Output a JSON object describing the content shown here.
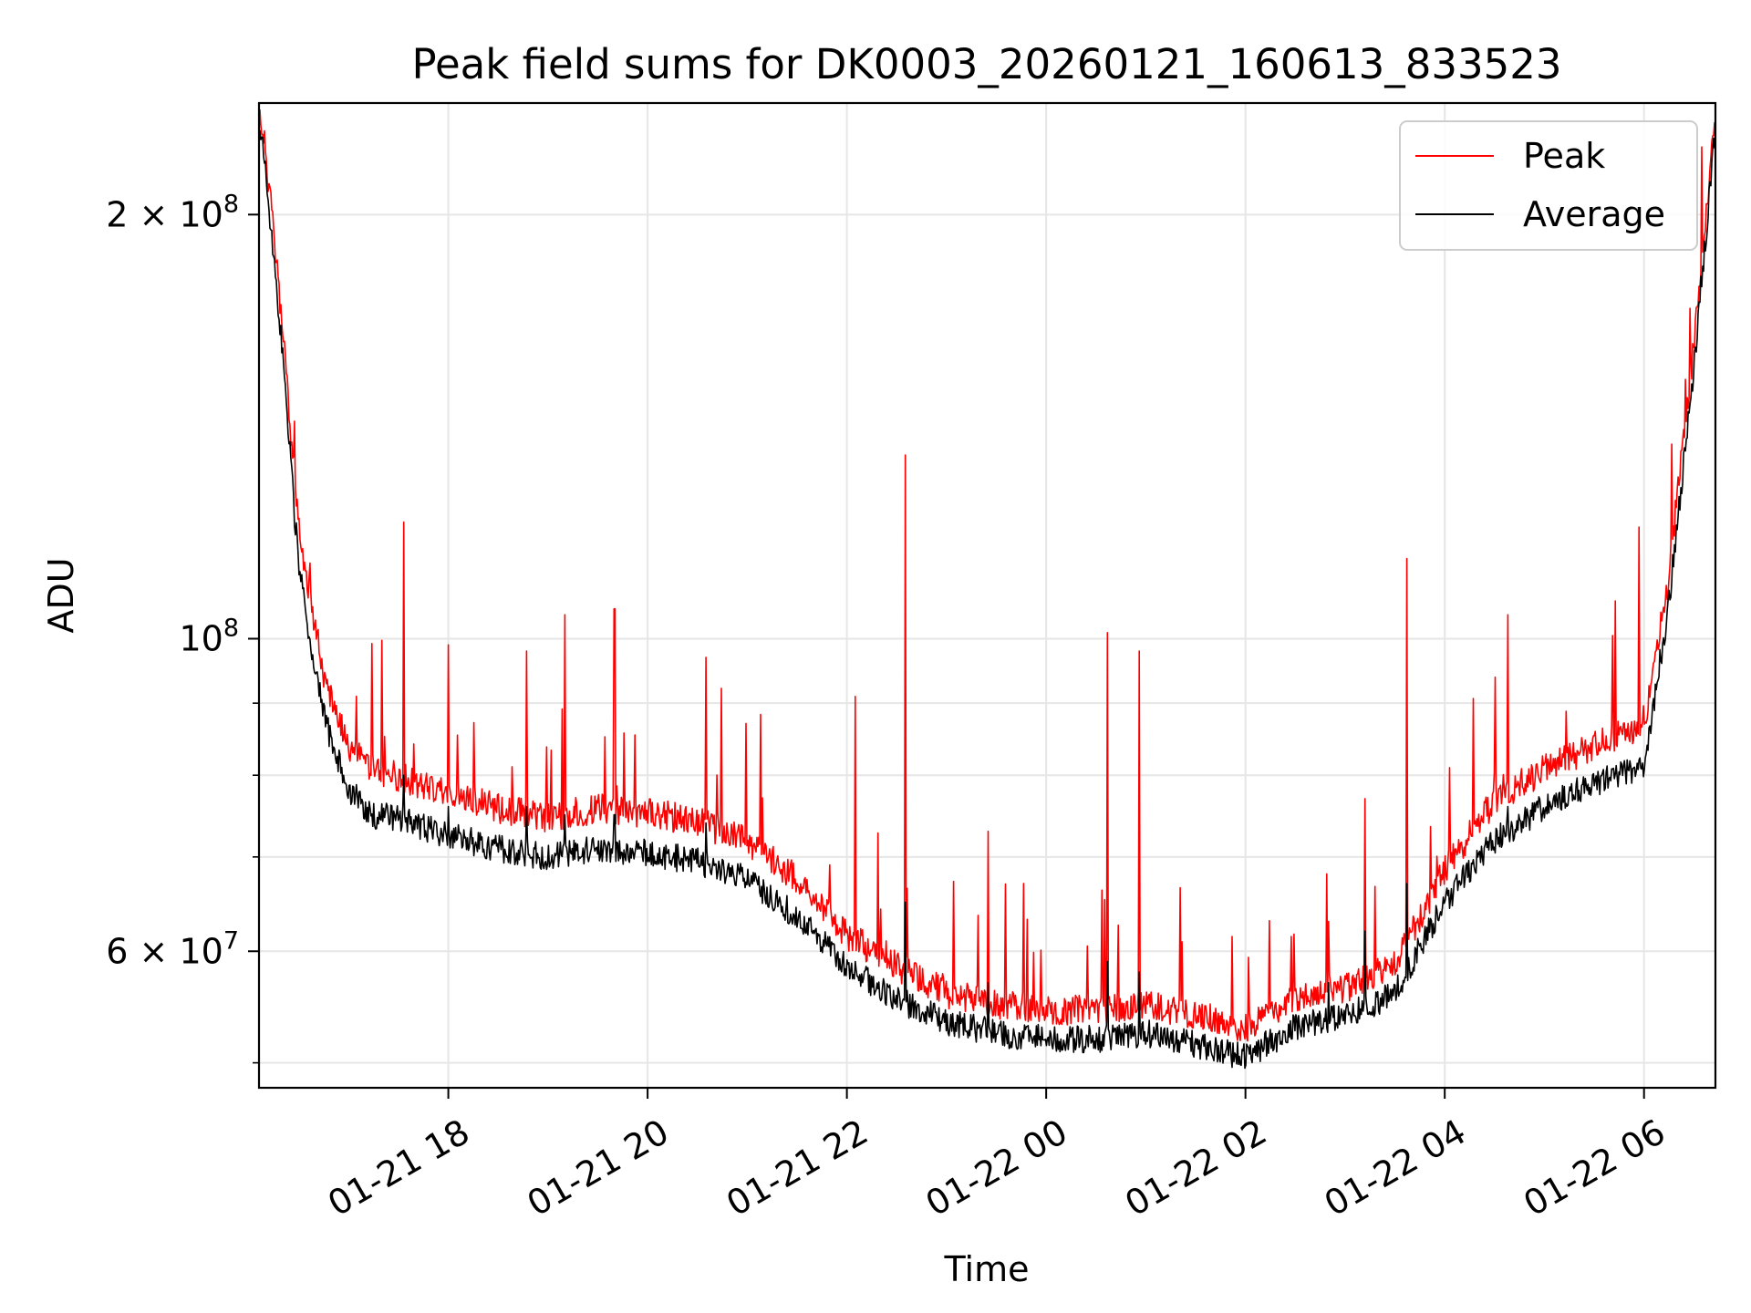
{
  "chart_data": {
    "type": "line",
    "title": "Peak field sums for DK0003_20260121_160613_833523",
    "xlabel": "Time",
    "ylabel": "ADU",
    "yscale": "log",
    "grid": true,
    "legend_position": "top-right",
    "xlim": [
      "2026-01-21 16:06",
      "2026-01-22 06:43"
    ],
    "ylim": [
      48000000,
      240000000
    ],
    "x_ticks": [
      "01-21 18",
      "01-21 20",
      "01-21 22",
      "01-22 00",
      "01-22 02",
      "01-22 04",
      "01-22 06"
    ],
    "y_ticks": [
      {
        "value": 200000000,
        "mantissa": "2",
        "times": "×",
        "base": "10",
        "exp": "8"
      },
      {
        "value": 100000000,
        "mantissa": "",
        "times": "",
        "base": "10",
        "exp": "8"
      },
      {
        "value": 60000000,
        "mantissa": "6",
        "times": "×",
        "base": "10",
        "exp": "7"
      }
    ],
    "y_minor_ticks": [
      50000000,
      70000000,
      80000000,
      90000000
    ],
    "colors": {
      "peak": "#ff0000",
      "average": "#000000",
      "grid": "#e6e6e6"
    },
    "x": [
      "2026-01-21 16:06",
      "2026-01-21 16:10",
      "2026-01-21 16:20",
      "2026-01-21 16:30",
      "2026-01-21 16:45",
      "2026-01-21 17:00",
      "2026-01-21 17:15",
      "2026-01-21 17:30",
      "2026-01-21 18:00",
      "2026-01-21 18:30",
      "2026-01-21 19:00",
      "2026-01-21 19:30",
      "2026-01-21 20:00",
      "2026-01-21 20:30",
      "2026-01-21 21:00",
      "2026-01-21 21:30",
      "2026-01-21 22:00",
      "2026-01-21 22:30",
      "2026-01-21 23:00",
      "2026-01-21 23:30",
      "2026-01-22 00:00",
      "2026-01-22 00:30",
      "2026-01-22 01:00",
      "2026-01-22 01:30",
      "2026-01-22 02:00",
      "2026-01-22 02:30",
      "2026-01-22 03:00",
      "2026-01-22 03:30",
      "2026-01-22 04:00",
      "2026-01-22 04:30",
      "2026-01-22 05:00",
      "2026-01-22 05:30",
      "2026-01-22 06:00",
      "2026-01-22 06:15",
      "2026-01-22 06:30",
      "2026-01-22 06:43"
    ],
    "series": [
      {
        "name": "Peak",
        "values": [
          232000000,
          220000000,
          165000000,
          118000000,
          93000000,
          83000000,
          80000000,
          79000000,
          77000000,
          75000000,
          74000000,
          75000000,
          74500000,
          73500000,
          71000000,
          67000000,
          61000000,
          58000000,
          55500000,
          54500000,
          54000000,
          54000000,
          54500000,
          53500000,
          52500000,
          55000000,
          56000000,
          58000000,
          68000000,
          76000000,
          80000000,
          83000000,
          86000000,
          110000000,
          160000000,
          232000000
        ]
      },
      {
        "name": "Average",
        "values": [
          230000000,
          216000000,
          160000000,
          112000000,
          88000000,
          78000000,
          75000000,
          74500000,
          72500000,
          71000000,
          70000000,
          71000000,
          70500000,
          69500000,
          67500000,
          63500000,
          58500000,
          55500000,
          53500000,
          52500000,
          52000000,
          52000000,
          52500000,
          51500000,
          50500000,
          53000000,
          54000000,
          56000000,
          65000000,
          72000000,
          76000000,
          79000000,
          81000000,
          106000000,
          156000000,
          230000000
        ]
      }
    ],
    "spikes": [
      {
        "x": "2026-01-21 17:33",
        "peak": 121000000,
        "average": 80000000
      },
      {
        "x": "2026-01-21 18:00",
        "peak": 99000000,
        "average": 76000000
      },
      {
        "x": "2026-01-21 18:47",
        "peak": 98000000,
        "average": 76000000
      },
      {
        "x": "2026-01-21 19:10",
        "peak": 104000000,
        "average": 75000000
      },
      {
        "x": "2026-01-21 19:40",
        "peak": 105000000,
        "average": 75000000
      },
      {
        "x": "2026-01-21 20:35",
        "peak": 97000000,
        "average": 74000000
      },
      {
        "x": "2026-01-21 22:05",
        "peak": 91000000,
        "average": 59000000
      },
      {
        "x": "2026-01-21 22:35",
        "peak": 135000000,
        "average": 65000000
      },
      {
        "x": "2026-01-21 23:25",
        "peak": 73000000,
        "average": 57000000
      },
      {
        "x": "2026-01-22 00:37",
        "peak": 101000000,
        "average": 59000000
      },
      {
        "x": "2026-01-22 00:56",
        "peak": 98000000,
        "average": 58000000
      },
      {
        "x": "2026-01-22 02:50",
        "peak": 63000000,
        "average": 57000000
      },
      {
        "x": "2026-01-22 03:12",
        "peak": 77000000,
        "average": 62000000
      },
      {
        "x": "2026-01-22 03:37",
        "peak": 114000000,
        "average": 67000000
      },
      {
        "x": "2026-01-22 04:38",
        "peak": 104000000,
        "average": 76000000
      },
      {
        "x": "2026-01-22 05:57",
        "peak": 120000000,
        "average": 82000000
      }
    ]
  }
}
